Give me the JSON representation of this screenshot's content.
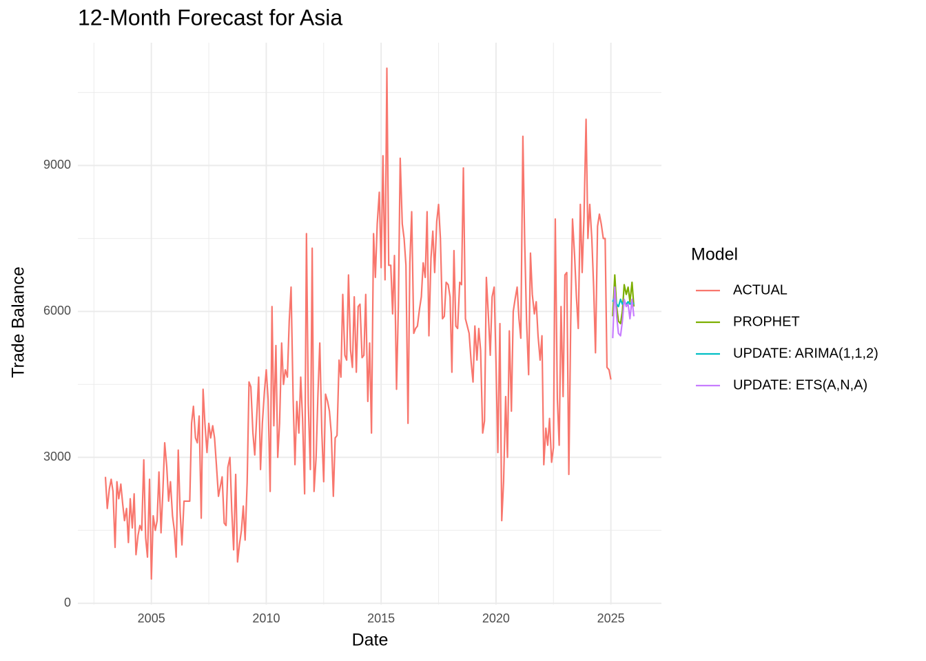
{
  "chart_data": {
    "type": "line",
    "title": "12-Month Forecast for Asia",
    "xlabel": "Date",
    "ylabel": "Trade Balance",
    "legend_title": "Model",
    "xlim": [
      2001.8,
      2027.2
    ],
    "xticks": [
      2005,
      2010,
      2015,
      2020,
      2025
    ],
    "ylim": [
      -25,
      11525
    ],
    "yticks": [
      0,
      3000,
      6000,
      9000
    ],
    "grid": true,
    "minor_grid": true,
    "legend": "right",
    "series": [
      {
        "name": "ACTUAL",
        "color": "#F8766D",
        "x": [
          2003,
          2003.08,
          2003.17,
          2003.25,
          2003.33,
          2003.42,
          2003.5,
          2003.58,
          2003.67,
          2003.75,
          2003.83,
          2003.92,
          2004,
          2004.08,
          2004.17,
          2004.25,
          2004.33,
          2004.42,
          2004.5,
          2004.58,
          2004.67,
          2004.75,
          2004.83,
          2004.92,
          2005,
          2005.08,
          2005.17,
          2005.25,
          2005.33,
          2005.42,
          2005.5,
          2005.58,
          2005.67,
          2005.75,
          2005.83,
          2005.92,
          2006,
          2006.08,
          2006.17,
          2006.25,
          2006.33,
          2006.42,
          2006.5,
          2006.58,
          2006.67,
          2006.75,
          2006.83,
          2006.92,
          2007,
          2007.08,
          2007.17,
          2007.25,
          2007.33,
          2007.42,
          2007.5,
          2007.58,
          2007.67,
          2007.75,
          2007.83,
          2007.92,
          2008,
          2008.08,
          2008.17,
          2008.25,
          2008.33,
          2008.42,
          2008.5,
          2008.58,
          2008.67,
          2008.75,
          2008.83,
          2008.92,
          2009,
          2009.08,
          2009.17,
          2009.25,
          2009.33,
          2009.42,
          2009.5,
          2009.58,
          2009.67,
          2009.75,
          2009.83,
          2009.92,
          2010,
          2010.08,
          2010.17,
          2010.25,
          2010.33,
          2010.42,
          2010.5,
          2010.58,
          2010.67,
          2010.75,
          2010.83,
          2010.92,
          2011,
          2011.08,
          2011.17,
          2011.25,
          2011.33,
          2011.42,
          2011.5,
          2011.58,
          2011.67,
          2011.75,
          2011.83,
          2011.92,
          2012,
          2012.08,
          2012.17,
          2012.25,
          2012.33,
          2012.42,
          2012.5,
          2012.58,
          2012.67,
          2012.75,
          2012.83,
          2012.92,
          2013,
          2013.08,
          2013.17,
          2013.25,
          2013.33,
          2013.42,
          2013.5,
          2013.58,
          2013.67,
          2013.75,
          2013.83,
          2013.92,
          2014,
          2014.08,
          2014.17,
          2014.25,
          2014.33,
          2014.42,
          2014.5,
          2014.58,
          2014.67,
          2014.75,
          2014.83,
          2014.92,
          2015,
          2015.08,
          2015.17,
          2015.25,
          2015.33,
          2015.42,
          2015.5,
          2015.58,
          2015.67,
          2015.75,
          2015.83,
          2015.92,
          2016,
          2016.08,
          2016.17,
          2016.25,
          2016.33,
          2016.42,
          2016.5,
          2016.58,
          2016.67,
          2016.75,
          2016.83,
          2016.92,
          2017,
          2017.08,
          2017.17,
          2017.25,
          2017.33,
          2017.42,
          2017.5,
          2017.58,
          2017.67,
          2017.75,
          2017.83,
          2017.92,
          2018,
          2018.08,
          2018.17,
          2018.25,
          2018.33,
          2018.42,
          2018.5,
          2018.58,
          2018.67,
          2018.75,
          2018.83,
          2018.92,
          2019,
          2019.08,
          2019.17,
          2019.25,
          2019.33,
          2019.42,
          2019.5,
          2019.58,
          2019.67,
          2019.75,
          2019.83,
          2019.92,
          2020,
          2020.08,
          2020.17,
          2020.25,
          2020.33,
          2020.42,
          2020.5,
          2020.58,
          2020.67,
          2020.75,
          2020.83,
          2020.92,
          2021,
          2021.08,
          2021.17,
          2021.25,
          2021.33,
          2021.42,
          2021.5,
          2021.58,
          2021.67,
          2021.75,
          2021.83,
          2021.92,
          2022,
          2022.08,
          2022.17,
          2022.25,
          2022.33,
          2022.42,
          2022.5,
          2022.58,
          2022.67,
          2022.75,
          2022.83,
          2022.92,
          2023,
          2023.08,
          2023.17,
          2023.25,
          2023.33,
          2023.42,
          2023.5,
          2023.58,
          2023.67,
          2023.75,
          2023.83,
          2023.92,
          2024,
          2024.08,
          2024.17,
          2024.25,
          2024.33,
          2024.42,
          2024.5,
          2024.58,
          2024.67,
          2024.75,
          2024.83,
          2024.92,
          2025
        ],
        "values": [
          2600,
          1950,
          2350,
          2550,
          2300,
          1150,
          2500,
          2150,
          2450,
          2050,
          1700,
          1950,
          1250,
          2150,
          1550,
          2250,
          1000,
          1400,
          1600,
          1500,
          2950,
          1350,
          950,
          2550,
          500,
          1800,
          1500,
          1700,
          2700,
          1450,
          2300,
          3300,
          2800,
          2100,
          2500,
          1800,
          1500,
          950,
          3150,
          1900,
          1200,
          2100,
          2100,
          2100,
          2100,
          3700,
          4050,
          3400,
          3300,
          3850,
          1750,
          4400,
          3700,
          3100,
          3700,
          3400,
          3650,
          3400,
          2850,
          2200,
          2400,
          2600,
          1650,
          1600,
          2800,
          3000,
          1900,
          1100,
          2650,
          850,
          1200,
          1500,
          2000,
          1300,
          2500,
          4550,
          4450,
          3500,
          3050,
          3800,
          4650,
          2750,
          3700,
          4350,
          4800,
          4200,
          2300,
          6100,
          3650,
          5300,
          3000,
          3700,
          5350,
          4500,
          4800,
          4650,
          5800,
          6500,
          4200,
          2850,
          4150,
          3500,
          4650,
          3800,
          2250,
          7600,
          4100,
          2750,
          7300,
          2300,
          3000,
          4300,
          5350,
          3500,
          2500,
          4300,
          4150,
          3950,
          3500,
          2200,
          3400,
          3450,
          5000,
          4650,
          6350,
          5100,
          5000,
          6750,
          5200,
          4850,
          6300,
          4750,
          6100,
          6150,
          5050,
          5100,
          6350,
          4150,
          5350,
          3500,
          7600,
          6700,
          7800,
          8450,
          6900,
          9200,
          6650,
          11000,
          6950,
          6950,
          5950,
          7150,
          4400,
          6100,
          9150,
          7800,
          7500,
          6950,
          3700,
          7000,
          8050,
          5550,
          5650,
          5700,
          6050,
          6300,
          7000,
          6700,
          8050,
          5500,
          7100,
          7650,
          6800,
          7850,
          8200,
          7500,
          5850,
          5900,
          6600,
          6550,
          6300,
          4750,
          7250,
          5700,
          5650,
          6600,
          6550,
          8950,
          5850,
          5700,
          5550,
          4950,
          4550,
          5700,
          5000,
          5650,
          5200,
          3500,
          3750,
          6700,
          5900,
          5100,
          6300,
          6500,
          4950,
          3100,
          5750,
          1700,
          2500,
          4250,
          3000,
          5600,
          3950,
          6000,
          6250,
          6500,
          5850,
          5450,
          9600,
          7400,
          5800,
          4700,
          7200,
          6350,
          5950,
          6200,
          5500,
          5000,
          5500,
          2850,
          3600,
          3250,
          3800,
          2900,
          3200,
          7900,
          4200,
          3250,
          6100,
          4250,
          6750,
          6800,
          2650,
          5700,
          7900,
          7150,
          6300,
          5650,
          8200,
          6800,
          7950,
          9950,
          7500,
          8200,
          7500,
          6500,
          5150,
          7750,
          8000,
          7800,
          7500,
          7500,
          4850,
          4800,
          4600
        ]
      },
      {
        "name": "PROPHET",
        "color": "#7CAE00",
        "x": [
          2025.08,
          2025.17,
          2025.25,
          2025.33,
          2025.42,
          2025.5,
          2025.58,
          2025.67,
          2025.75,
          2025.83,
          2025.92,
          2026
        ],
        "values": [
          5900,
          6750,
          6100,
          5800,
          5750,
          6000,
          6550,
          6350,
          6500,
          6200,
          6600,
          6100
        ]
      },
      {
        "name": "UPDATE: ARIMA(1,1,2)",
        "color": "#00BFC4",
        "x": [
          2025.08,
          2025.17,
          2025.25,
          2025.33,
          2025.42,
          2025.5,
          2025.58,
          2025.67,
          2025.75,
          2025.83,
          2025.92,
          2026
        ],
        "values": [
          6200,
          6300,
          6150,
          6100,
          6250,
          6150,
          6200,
          6150,
          6200,
          6150,
          6200,
          6150
        ]
      },
      {
        "name": "UPDATE: ETS(A,N,A)",
        "color": "#C77CFF",
        "x": [
          2025.08,
          2025.17,
          2025.25,
          2025.33,
          2025.42,
          2025.5,
          2025.58,
          2025.67,
          2025.75,
          2025.83,
          2025.92,
          2026
        ],
        "values": [
          5450,
          6500,
          5900,
          5550,
          5500,
          5800,
          6250,
          6100,
          6150,
          5850,
          6250,
          5900
        ]
      }
    ]
  }
}
